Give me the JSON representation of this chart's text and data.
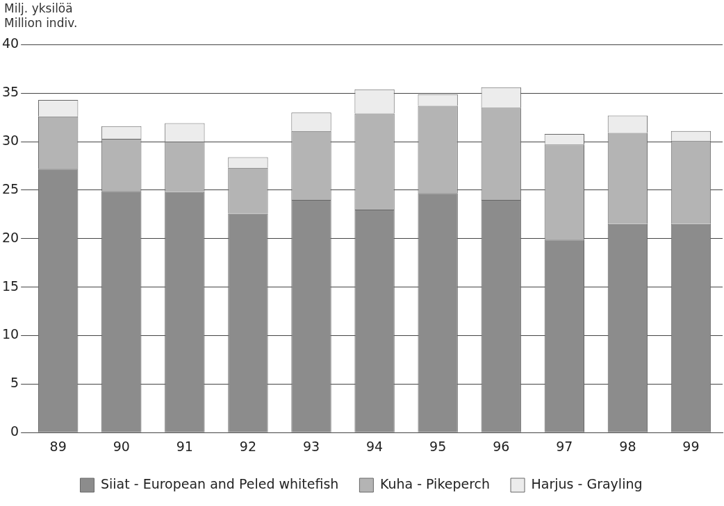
{
  "chart_data": {
    "type": "bar",
    "stacked": true,
    "ylabel": "Milj. yksilöä\nMillion indiv.",
    "categories": [
      "89",
      "90",
      "91",
      "92",
      "93",
      "94",
      "95",
      "96",
      "97",
      "98",
      "99"
    ],
    "series": [
      {
        "name": "Siiat - European and Peled whitefish",
        "color": "#8c8c8c",
        "values": [
          27.2,
          24.9,
          24.8,
          22.6,
          24.0,
          23.0,
          24.7,
          24.0,
          19.9,
          21.5,
          21.5
        ]
      },
      {
        "name": "Kuha - Pikeperch",
        "color": "#b4b4b4",
        "values": [
          5.4,
          5.4,
          5.2,
          4.7,
          7.1,
          9.9,
          9.0,
          9.5,
          9.8,
          9.4,
          8.6
        ]
      },
      {
        "name": "Harjus - Grayling",
        "color": "#ececec",
        "values": [
          1.7,
          1.3,
          1.9,
          1.1,
          1.9,
          2.5,
          1.2,
          2.1,
          1.1,
          1.8,
          1.0
        ]
      }
    ],
    "ylim": [
      0,
      40
    ],
    "yticks": [
      0,
      5,
      10,
      15,
      20,
      25,
      30,
      35,
      40
    ],
    "grid": "y",
    "legend": "bottom"
  }
}
